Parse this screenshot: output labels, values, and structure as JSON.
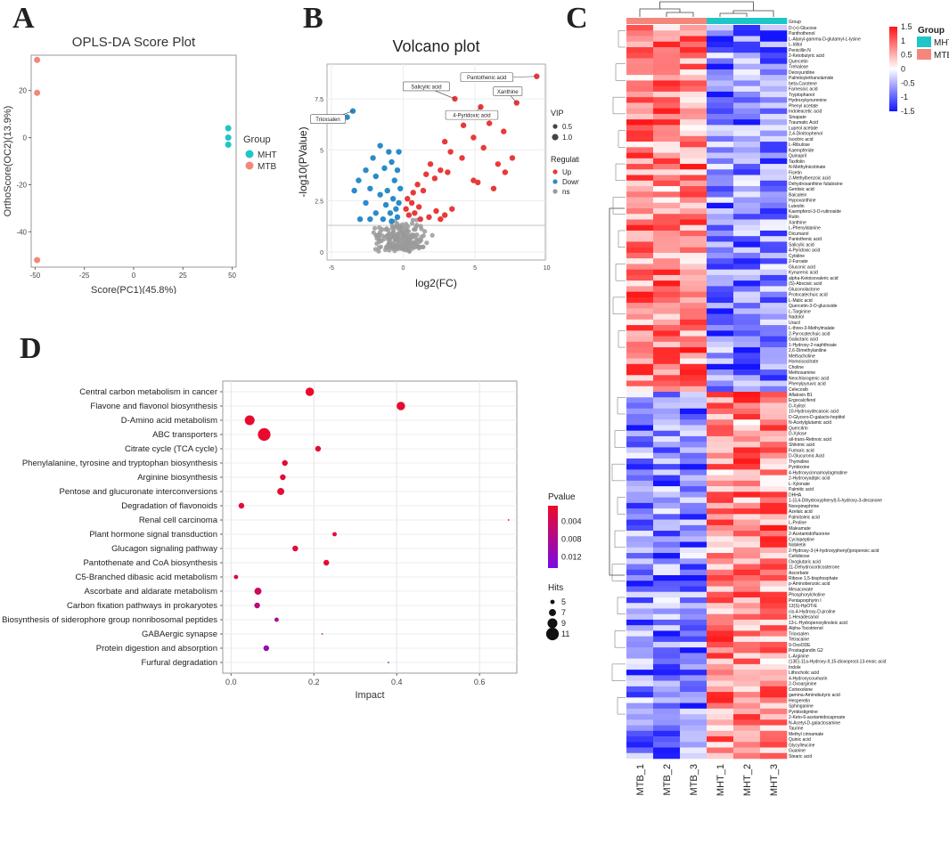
{
  "panels": {
    "a": "A",
    "b": "B",
    "c": "C",
    "d": "D"
  },
  "chart_data": [
    {
      "type": "scatter",
      "title": "OPLS-DA Score Plot",
      "xlabel": "Score(PC1)(45.8%)",
      "ylabel": "OrthoScore(OC2)(13.9%)",
      "xlim": [
        -52,
        52
      ],
      "ylim": [
        -55,
        35
      ],
      "xticks": [
        -50,
        -25,
        0,
        25,
        50
      ],
      "yticks": [
        -40,
        -20,
        0,
        20
      ],
      "legend": {
        "title": "Group",
        "position": "right",
        "entries": [
          {
            "name": "MHT",
            "color": "#1ec6c8"
          },
          {
            "name": "MTB",
            "color": "#f4877c"
          }
        ]
      },
      "series": [
        {
          "name": "MHT",
          "color": "#1ec6c8",
          "points": [
            [
              48,
              4
            ],
            [
              48,
              0
            ],
            [
              48,
              -3
            ]
          ]
        },
        {
          "name": "MTB",
          "color": "#f4877c",
          "points": [
            [
              -49,
              33
            ],
            [
              -49,
              19
            ],
            [
              -49,
              -52
            ]
          ]
        }
      ]
    },
    {
      "type": "scatter",
      "title": "Volcano plot",
      "xlabel": "log2(FC)",
      "ylabel": "-log10(PValue)",
      "xlim": [
        -5.3,
        9.9
      ],
      "ylim": [
        -0.4,
        9.2
      ],
      "xticks": [
        -5,
        0,
        5,
        10
      ],
      "yticks": [
        0,
        2.5,
        5,
        7.5
      ],
      "threshold_y": 1.3,
      "legend": {
        "vip_title": "VIP",
        "vip_entries": [
          "0.5",
          "1.0"
        ],
        "regulation_title": "Regulation",
        "regulation_entries": [
          {
            "name": "Up",
            "color": "#e8393a"
          },
          {
            "name": "Down",
            "color": "#2a8bc8"
          },
          {
            "name": "ns",
            "color": "#9a9a9a"
          }
        ]
      },
      "annotations": [
        {
          "label": "Pantothenic acid",
          "x": 9.3,
          "y": 8.6
        },
        {
          "label": "Xanthine",
          "x": 7.9,
          "y": 7.3
        },
        {
          "label": "Salicylic acid",
          "x": 3.6,
          "y": 7.5
        },
        {
          "label": "4-Pyridoxic acid",
          "x": 5.4,
          "y": 7.1
        },
        {
          "label": "Trioxsalen",
          "x": -3.5,
          "y": 6.9
        }
      ],
      "up": [
        [
          9.3,
          8.6
        ],
        [
          7.9,
          7.3
        ],
        [
          3.6,
          7.5
        ],
        [
          5.4,
          7.1
        ],
        [
          6.0,
          6.3
        ],
        [
          7.0,
          5.9
        ],
        [
          4.2,
          6.2
        ],
        [
          4.9,
          5.6
        ],
        [
          5.6,
          5.1
        ],
        [
          7.6,
          4.6
        ],
        [
          6.6,
          4.3
        ],
        [
          4.1,
          4.6
        ],
        [
          2.9,
          5.4
        ],
        [
          3.3,
          4.9
        ],
        [
          1.9,
          4.3
        ],
        [
          2.6,
          4.0
        ],
        [
          3.1,
          3.9
        ],
        [
          2.2,
          3.6
        ],
        [
          1.6,
          3.8
        ],
        [
          4.9,
          3.5
        ],
        [
          5.2,
          3.4
        ],
        [
          7.1,
          3.9
        ],
        [
          6.3,
          3.1
        ],
        [
          1.0,
          3.3
        ],
        [
          1.4,
          3.0
        ],
        [
          0.7,
          2.9
        ],
        [
          0.3,
          2.6
        ],
        [
          0.6,
          2.4
        ],
        [
          1.1,
          2.2
        ],
        [
          0.2,
          2.1
        ],
        [
          0.8,
          1.9
        ],
        [
          2.3,
          2.0
        ],
        [
          2.9,
          1.8
        ],
        [
          3.4,
          2.1
        ],
        [
          1.8,
          1.7
        ],
        [
          0.4,
          1.8
        ],
        [
          1.2,
          1.6
        ],
        [
          2.6,
          1.6
        ]
      ],
      "down": [
        [
          -3.5,
          6.9
        ],
        [
          -3.9,
          6.6
        ],
        [
          -1.6,
          5.2
        ],
        [
          -1.0,
          4.9
        ],
        [
          -0.3,
          4.9
        ],
        [
          -2.1,
          4.6
        ],
        [
          -0.8,
          4.4
        ],
        [
          -1.3,
          4.1
        ],
        [
          -0.4,
          4.0
        ],
        [
          -2.6,
          4.0
        ],
        [
          -1.9,
          3.7
        ],
        [
          -0.6,
          3.5
        ],
        [
          -3.1,
          3.5
        ],
        [
          -2.3,
          3.1
        ],
        [
          -1.1,
          3.0
        ],
        [
          -0.2,
          3.1
        ],
        [
          -3.4,
          3.0
        ],
        [
          -1.6,
          2.8
        ],
        [
          -0.7,
          2.6
        ],
        [
          -0.3,
          2.4
        ],
        [
          -2.6,
          2.4
        ],
        [
          -1.2,
          2.3
        ],
        [
          -0.5,
          2.1
        ],
        [
          -1.9,
          1.9
        ],
        [
          -2.3,
          1.6
        ],
        [
          -1.4,
          1.6
        ],
        [
          -0.8,
          1.5
        ],
        [
          -0.4,
          1.7
        ],
        [
          -0.9,
          1.9
        ],
        [
          -3.0,
          1.6
        ]
      ],
      "ns_count": 190
    },
    {
      "type": "heatmap",
      "legend_title": "Group",
      "groups": [
        {
          "name": "MHT",
          "color": "#1ec6c8"
        },
        {
          "name": "MTB",
          "color": "#f4877c"
        }
      ],
      "group_header": "Group",
      "color_scale": {
        "title": "",
        "ticks": [
          "1.5",
          "1",
          "0.5",
          "0",
          "-0.5",
          "-1",
          "-1.5"
        ],
        "low": "#1414ff",
        "mid": "#ffffff",
        "high": "#ff1414",
        "range": [
          -1.5,
          1.5
        ]
      },
      "columns": [
        "MTB_1",
        "MTB_2",
        "MTB_3",
        "MHT_1",
        "MHT_2",
        "MHT_3"
      ],
      "rows": [
        "D-(+)-Glucose",
        "Panthothenol",
        "L-Alanyl-gamma-D-glutamyl-L-lysine",
        "L-Iditol",
        "Penicillin N",
        "2-Ketobutyric acid",
        "Quercetin",
        "Trehalose",
        "Deoxyuridine",
        "Palmitoylethanolamide",
        "beta-Carotene",
        "Farnesoic acid",
        "Tryptophanol",
        "Hydroxykynurenine",
        "Phenyl acetate",
        "Indoleacetic acid",
        "Sinapate",
        "Traumatic Acid",
        "Lupeol acetate",
        "2,4-Dinitrophenol",
        "Isocitric acid",
        "L-Ribulose",
        "Kaempferide",
        "Quinapril",
        "Taxifolin",
        "N-Methylnicotinate",
        "Fisetin",
        "2-Methylbenzoic acid",
        "Dehydroxanthine futalosine",
        "Gentisic acid",
        "Baicalein",
        "Hypoxanthine",
        "Luteolin",
        "Kaempferol-3-O-rutinoside",
        "Rutin",
        "Xanthine",
        "L-Phenylalanine",
        "Dicumarol",
        "Pantothenic acid",
        "Salicylic acid",
        "4-Pyridoxic acid",
        "Cytidine",
        "2-Furoate",
        "Gluconic acid",
        "Kynurenic acid",
        "alpha-Ketoisovaleric acid",
        "(S)-Abscisic acid",
        "Gluconolactone",
        "Protocatechuic acid",
        "L-Malic acid",
        "Quercetin-3-O-glucoside",
        "L-Targinine",
        "Nadolol",
        "Uracil",
        "L-threo-3-Methylmalate",
        "2-Pyrocatechuic acid",
        "Galactaric acid",
        "1-Hydroxy-2-naphthoate",
        "2,6-Dimethylaniline",
        "Methacholine",
        "Homoisocitrate",
        "Choline",
        "Methoxamine",
        "Neochlorogenic acid",
        "Phenylpyruvic acid",
        "Celecoxib",
        "Aflatoxin B1",
        "Ergocalciferol",
        "D-Xylitol",
        "10-Hydroxydecanoic acid",
        "D-Glycero-D-galacto-heptitol",
        "N-Acetylglutamic acid",
        "Quercitrin",
        "D-Xylose",
        "all-trans-Retinoic acid",
        "Shikimic acid",
        "Fumaric acid",
        "D-Glucuronic Acid",
        "Thymidine",
        "Pyridoxine",
        "4-Hydroxycinnamoylagmatine",
        "2-Hydroxyadipic acid",
        "L-Xylonate",
        "Palmitic acid",
        "DHHA",
        "1-(3,4-Dihydroxyphenyl)-5-hydroxy-3-decanone",
        "Norepinephrine",
        "Azelaic acid",
        "Palmitoleic acid",
        "L-Proline",
        "Maleamate",
        "2-Acetamidofluorene",
        "Cyclopeptine",
        "Nobiletin",
        "2-Hydroxy-3-(4-hydroxyphenyl)propenoic acid",
        "Cellobiose",
        "Oxoglutaric acid",
        "11-Dehydrocorticosterone",
        "Ascorbate",
        "Ribose 1,5-bisphosphate",
        "p-Aminobenzoic acid",
        "Mesaconate",
        "Phosphorylcholine",
        "Pentaporphyrin I",
        "13(S)-HpOTrE",
        "cis-4-Hydroxy-D-proline",
        "1-Hexadecanol",
        "13-L-Hydroperoxylinoleic acid",
        "Alpha-Tocotrienol",
        "Trioxsalen",
        "Tetracaine",
        "9-OxoODE",
        "Prostaglandin G2",
        "L-Arginine",
        "(13E)-11a-Hydroxy-9,15-dioxoprost-13-enoic acid",
        "Indole",
        "Lithocholic acid",
        "4-Hydroxycoumarin",
        "2-Oxoarginine",
        "Cortexolone",
        "gamma-Aminobutyric acid",
        "Hesperetin",
        "Sphinganine",
        "Pyridostigmine",
        "2-Keto-6-acetamidocaproate",
        "N-Acetyl-D-galactosamine",
        "Taurine",
        "Methyl cinnamate",
        "Quinic acid",
        "Glycylleucine",
        "Guanine",
        "Stearic acid"
      ],
      "split_index": 66
    },
    {
      "type": "scatter",
      "subtype": "bubble",
      "xlabel": "Impact",
      "ylabel": "",
      "xlim": [
        -0.02,
        0.69
      ],
      "xticks": [
        0.0,
        0.2,
        0.4,
        0.6
      ],
      "categories": [
        "Central carbon metabolism in cancer",
        "Flavone and flavonol biosynthesis",
        "D-Amino acid metabolism",
        "ABC transporters",
        "Citrate cycle (TCA cycle)",
        "Phenylalanine, tyrosine and tryptophan biosynthesis",
        "Arginine biosynthesis",
        "Pentose and glucuronate interconversions",
        "Degradation of flavonoids",
        "Renal cell carcinoma",
        "Plant hormone signal transduction",
        "Glucagon signaling pathway",
        "Pantothenate and CoA biosynthesis",
        "C5-Branched dibasic acid metabolism",
        "Ascorbate and aldarate metabolism",
        "Carbon fixation pathways in prokaryotes",
        "Biosynthesis of siderophore group nonribosomal peptides",
        "GABAergic synapse",
        "Protein digestion and absorption",
        "Furfural degradation"
      ],
      "impact": [
        0.19,
        0.41,
        0.045,
        0.08,
        0.21,
        0.13,
        0.125,
        0.12,
        0.025,
        0.67,
        0.25,
        0.155,
        0.23,
        0.012,
        0.065,
        0.063,
        0.11,
        0.22,
        0.085,
        0.38
      ],
      "hits": [
        8,
        8,
        9,
        11,
        6,
        6,
        6,
        7,
        6,
        3,
        5,
        6,
        6,
        5,
        7,
        6,
        5,
        3,
        6,
        3
      ],
      "pvalue": [
        0.0008,
        0.0008,
        0.001,
        0.0009,
        0.0014,
        0.0016,
        0.0017,
        0.0012,
        0.0015,
        0.0012,
        0.0018,
        0.0019,
        0.0015,
        0.0022,
        0.0045,
        0.0065,
        0.0085,
        0.0095,
        0.0105,
        0.0135
      ],
      "legend_pvalue": {
        "title": "Pvalue",
        "ticks": [
          "0.004",
          "0.008",
          "0.012"
        ],
        "range": [
          0.0005,
          0.0145
        ]
      },
      "legend_hits": {
        "title": "Hits",
        "entries": [
          5,
          7,
          9,
          11
        ]
      }
    }
  ]
}
